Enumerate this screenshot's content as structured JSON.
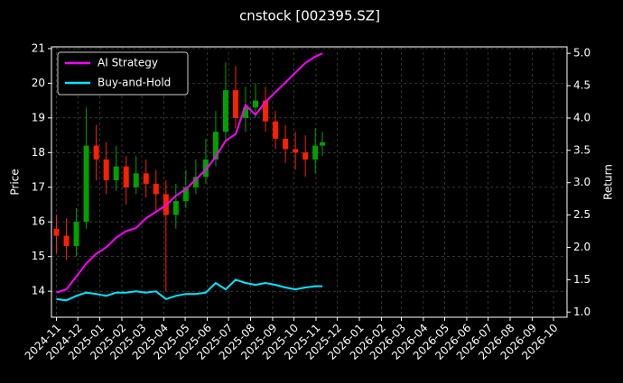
{
  "chart_data": {
    "type": "candlestick",
    "title": "cnstock [002395.SZ]",
    "ylabel": "Price",
    "y2label": "Return",
    "x": [
      "2024-11-01",
      "2024-11-15",
      "2024-11-29",
      "2024-12-13",
      "2024-12-27",
      "2025-01-10",
      "2025-01-24",
      "2025-02-07",
      "2025-02-21",
      "2025-03-07",
      "2025-03-21",
      "2025-04-04",
      "2025-04-18",
      "2025-05-02",
      "2025-05-16",
      "2025-05-30",
      "2025-06-13",
      "2025-06-27",
      "2025-07-11",
      "2025-07-25",
      "2025-08-08",
      "2025-08-22",
      "2025-09-05",
      "2025-09-19",
      "2025-10-03",
      "2025-10-17",
      "2025-10-31",
      "2025-11-10"
    ],
    "open": [
      15.8,
      15.6,
      15.3,
      16.0,
      18.2,
      17.8,
      17.2,
      17.6,
      17.0,
      17.4,
      17.1,
      16.8,
      16.2,
      16.6,
      17.0,
      17.3,
      17.8,
      18.6,
      19.8,
      19.0,
      19.3,
      19.5,
      18.9,
      18.4,
      18.1,
      18.0,
      17.8,
      18.2
    ],
    "high": [
      16.2,
      16.1,
      16.4,
      19.3,
      18.8,
      18.3,
      18.2,
      17.9,
      17.9,
      17.8,
      17.5,
      17.2,
      17.1,
      17.5,
      17.8,
      18.4,
      19.2,
      20.6,
      20.5,
      19.9,
      20.0,
      19.9,
      19.2,
      18.8,
      18.6,
      18.5,
      18.7,
      18.6
    ],
    "low": [
      15.1,
      14.9,
      15.0,
      15.8,
      17.2,
      16.8,
      16.9,
      16.5,
      16.8,
      16.7,
      16.3,
      14.0,
      15.8,
      16.4,
      16.8,
      17.1,
      17.6,
      18.3,
      18.7,
      18.6,
      19.0,
      18.6,
      18.1,
      17.7,
      17.5,
      17.3,
      17.4,
      17.9
    ],
    "close": [
      15.6,
      15.3,
      16.0,
      18.2,
      17.8,
      17.2,
      17.6,
      17.0,
      17.4,
      17.1,
      16.8,
      16.2,
      16.6,
      17.0,
      17.3,
      17.8,
      18.6,
      19.8,
      19.0,
      19.3,
      19.5,
      18.9,
      18.4,
      18.1,
      18.0,
      17.8,
      18.2,
      18.3
    ],
    "up_color": "#00a000",
    "down_color": "#ff2000",
    "series": [
      {
        "name": "AI Strategy",
        "color": "#ff00ff",
        "axis": "y2",
        "values": [
          1.3,
          1.35,
          1.55,
          1.75,
          1.9,
          2.0,
          2.15,
          2.25,
          2.3,
          2.45,
          2.55,
          2.65,
          2.8,
          2.9,
          3.05,
          3.2,
          3.4,
          3.65,
          3.75,
          4.2,
          4.05,
          4.25,
          4.4,
          4.55,
          4.7,
          4.85,
          4.95,
          5.0
        ]
      },
      {
        "name": "Buy-and-Hold",
        "color": "#00e5ff",
        "axis": "y2",
        "values": [
          1.2,
          1.18,
          1.25,
          1.3,
          1.28,
          1.25,
          1.3,
          1.3,
          1.32,
          1.3,
          1.32,
          1.2,
          1.25,
          1.28,
          1.28,
          1.3,
          1.45,
          1.35,
          1.5,
          1.45,
          1.42,
          1.45,
          1.42,
          1.38,
          1.35,
          1.38,
          1.4,
          1.4
        ]
      }
    ],
    "xlim": [
      "2024-10-25",
      "2026-10-20"
    ],
    "xticks": [
      {
        "value": "2024-11-01",
        "label": "2024-11"
      },
      {
        "value": "2024-12-01",
        "label": "2024-12"
      },
      {
        "value": "2025-01-01",
        "label": "2025-01"
      },
      {
        "value": "2025-02-01",
        "label": "2025-02"
      },
      {
        "value": "2025-03-01",
        "label": "2025-03"
      },
      {
        "value": "2025-04-01",
        "label": "2025-04"
      },
      {
        "value": "2025-05-01",
        "label": "2025-05"
      },
      {
        "value": "2025-06-01",
        "label": "2025-06"
      },
      {
        "value": "2025-07-01",
        "label": "2025-07"
      },
      {
        "value": "2025-08-01",
        "label": "2025-08"
      },
      {
        "value": "2025-09-01",
        "label": "2025-09"
      },
      {
        "value": "2025-10-01",
        "label": "2025-10"
      },
      {
        "value": "2025-11-01",
        "label": "2025-11"
      },
      {
        "value": "2025-12-01",
        "label": "2025-12"
      },
      {
        "value": "2026-01-01",
        "label": "2026-01"
      },
      {
        "value": "2026-02-01",
        "label": "2026-02"
      },
      {
        "value": "2026-03-01",
        "label": "2026-03"
      },
      {
        "value": "2026-04-01",
        "label": "2026-04"
      },
      {
        "value": "2026-05-01",
        "label": "2026-05"
      },
      {
        "value": "2026-06-01",
        "label": "2026-06"
      },
      {
        "value": "2026-07-01",
        "label": "2026-07"
      },
      {
        "value": "2026-08-01",
        "label": "2026-08"
      },
      {
        "value": "2026-09-01",
        "label": "2026-09"
      },
      {
        "value": "2026-10-01",
        "label": "2026-10"
      }
    ],
    "ylim": [
      13.25,
      21.05
    ],
    "yticks": [
      14,
      15,
      16,
      17,
      18,
      19,
      20,
      21
    ],
    "y2lim": [
      0.92,
      5.1
    ],
    "y2ticks": [
      {
        "value": 1,
        "label": "1.0"
      },
      1.5,
      {
        "value": 2,
        "label": "2.0"
      },
      2.5,
      {
        "value": 3,
        "label": "3.0"
      },
      3.5,
      {
        "value": 4,
        "label": "4.0"
      },
      4.5,
      {
        "value": 5,
        "label": "5.0"
      }
    ],
    "grid": true,
    "legend": "upper left"
  }
}
